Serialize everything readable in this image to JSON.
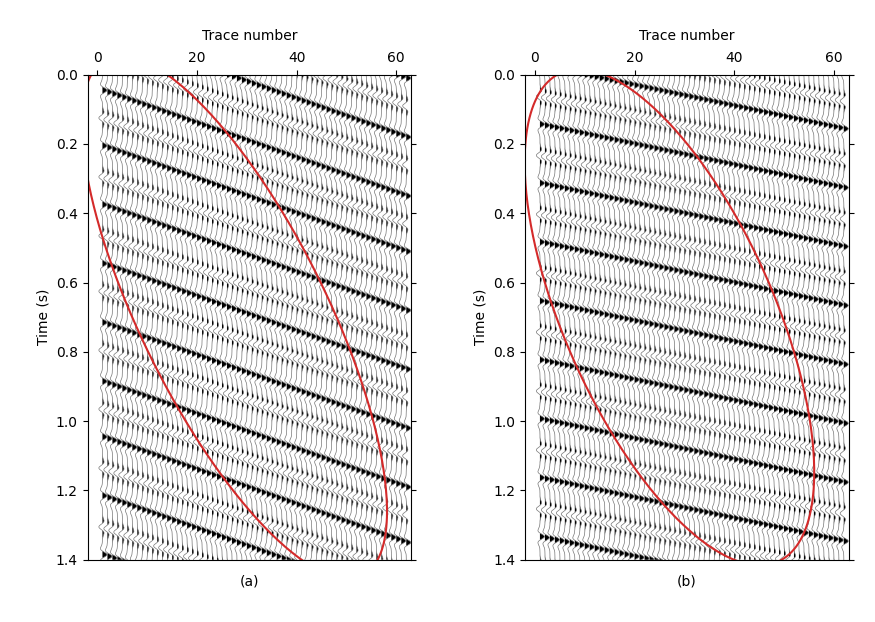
{
  "chart_data": [
    {
      "type": "wiggle",
      "caption": "(a)",
      "xlabel": "Trace number",
      "ylabel": "Time (s)",
      "trace_range": [
        1,
        62
      ],
      "xlim": [
        -2,
        63
      ],
      "xticks": [
        0,
        20,
        40,
        60
      ],
      "ylim": [
        1.4,
        0.0
      ],
      "yticks": [
        0.0,
        0.2,
        0.4,
        0.6,
        0.8,
        1.0,
        1.2,
        1.4
      ],
      "event_dip": 0.005,
      "event_t0": [
        -0.3,
        -0.22,
        -0.13,
        -0.05,
        0.04,
        0.12,
        0.2,
        0.29,
        0.37,
        0.46,
        0.54,
        0.62,
        0.71,
        0.79,
        0.88,
        0.96,
        1.04,
        1.13,
        1.21,
        1.3,
        1.38
      ],
      "ellipse": {
        "center": [
          27.5,
          0.7
        ],
        "axis1": [
          -13.5,
          -0.7
        ],
        "axis2": [
          -27.5,
          -0.28
        ],
        "color": "#d42a2a"
      }
    },
    {
      "type": "wiggle",
      "caption": "(b)",
      "xlabel": "Trace number",
      "ylabel": "Time (s)",
      "trace_range": [
        1,
        62
      ],
      "xlim": [
        -2,
        63
      ],
      "xticks": [
        0,
        20,
        40,
        60
      ],
      "ylim": [
        1.4,
        0.0
      ],
      "yticks": [
        0.0,
        0.2,
        0.4,
        0.6,
        0.8,
        1.0,
        1.2,
        1.4
      ],
      "event_dip": 0.003,
      "event_t0": [
        -0.2,
        -0.11,
        -0.03,
        0.06,
        0.14,
        0.23,
        0.31,
        0.4,
        0.48,
        0.57,
        0.65,
        0.74,
        0.82,
        0.91,
        0.99,
        1.08,
        1.16,
        1.25,
        1.33,
        1.42
      ],
      "ellipse": {
        "center": [
          27.0,
          0.7
        ],
        "axis1": [
          -13.0,
          -0.7
        ],
        "axis2": [
          -26.0,
          -0.15
        ],
        "color": "#d42a2a"
      }
    }
  ]
}
